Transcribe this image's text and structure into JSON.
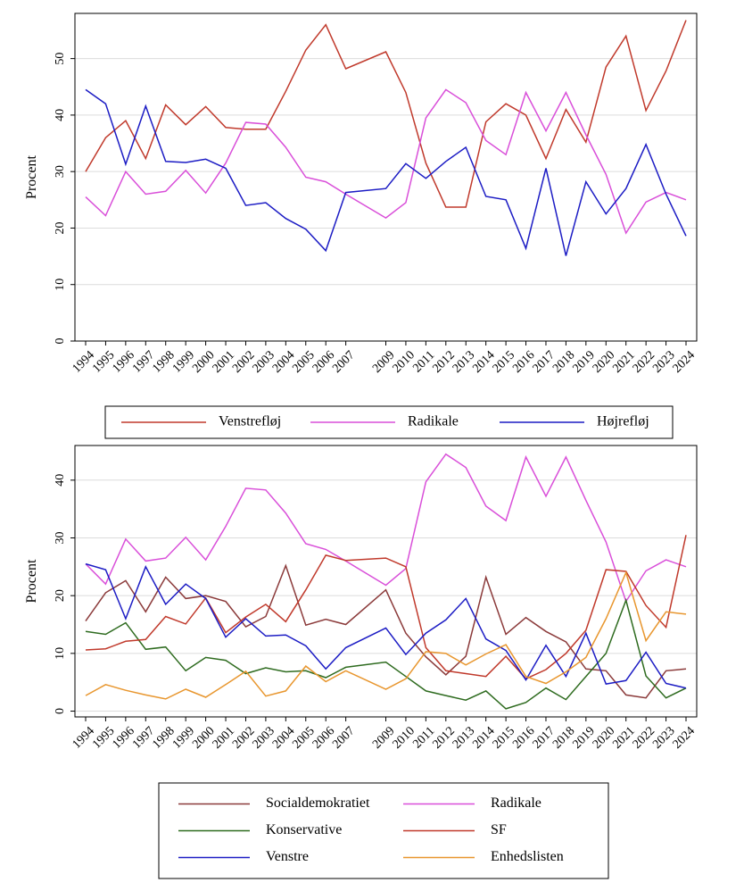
{
  "chart_data": [
    {
      "type": "line",
      "ylabel": "Procent",
      "xlabel": "",
      "ylim": [
        0,
        58
      ],
      "yticks": [
        0,
        10,
        20,
        30,
        40,
        50
      ],
      "x": [
        1994,
        1995,
        1996,
        1997,
        1998,
        1999,
        2000,
        2001,
        2002,
        2003,
        2004,
        2005,
        2006,
        2007,
        2009,
        2010,
        2011,
        2012,
        2013,
        2014,
        2015,
        2016,
        2017,
        2018,
        2019,
        2020,
        2021,
        2022,
        2023,
        2024
      ],
      "x_labels": [
        "1994",
        "1995",
        "1996",
        "1997",
        "1998",
        "1999",
        "2000",
        "2001",
        "2002",
        "2003",
        "2004",
        "2005",
        "2006",
        "2007",
        "2009",
        "2010",
        "2011",
        "2012",
        "2013",
        "2014",
        "2015",
        "2016",
        "2017",
        "2018",
        "2019",
        "2020",
        "2021",
        "2022",
        "2023",
        "2024"
      ],
      "legend": "bottom",
      "series": [
        {
          "name": "Venstrefløj",
          "color": "#c0392b",
          "values": [
            30,
            36,
            39,
            32.3,
            41.8,
            38.3,
            41.5,
            37.8,
            37.5,
            37.5,
            44.2,
            51.5,
            56,
            48.2,
            51.2,
            44,
            31.5,
            23.7,
            23.7,
            38.8,
            42,
            40,
            32.3,
            41,
            35.2,
            48.5,
            54,
            40.8,
            47.8,
            56.8
          ]
        },
        {
          "name": "Radikale",
          "color": "#d94fd9",
          "values": [
            25.5,
            22.2,
            30,
            26,
            26.5,
            30.2,
            26.2,
            31.5,
            38.7,
            38.4,
            34.3,
            29,
            28.2,
            26,
            21.8,
            24.5,
            39.5,
            44.5,
            42.2,
            35.5,
            33,
            44,
            37.2,
            44,
            36.5,
            29.5,
            19.1,
            24.6,
            26.3,
            25
          ]
        },
        {
          "name": "Højrefløj",
          "color": "#1c1cc4",
          "values": [
            44.5,
            42,
            31.3,
            41.6,
            31.8,
            31.6,
            32.2,
            30.6,
            24,
            24.5,
            21.7,
            19.8,
            16,
            26.3,
            27,
            31.4,
            28.8,
            31.8,
            34.3,
            25.6,
            25,
            16.4,
            30.6,
            15.1,
            28.2,
            22.5,
            27,
            34.8,
            26,
            18.6
          ]
        }
      ]
    },
    {
      "type": "line",
      "ylabel": "Procent",
      "xlabel": "",
      "ylim": [
        -1,
        46
      ],
      "yticks": [
        0,
        10,
        20,
        30,
        40
      ],
      "x": [
        1994,
        1995,
        1996,
        1997,
        1998,
        1999,
        2000,
        2001,
        2002,
        2003,
        2004,
        2005,
        2006,
        2007,
        2009,
        2010,
        2011,
        2012,
        2013,
        2014,
        2015,
        2016,
        2017,
        2018,
        2019,
        2020,
        2021,
        2022,
        2023,
        2024
      ],
      "x_labels": [
        "1994",
        "1995",
        "1996",
        "1997",
        "1998",
        "1999",
        "2000",
        "2001",
        "2002",
        "2003",
        "2004",
        "2005",
        "2006",
        "2007",
        "2009",
        "2010",
        "2011",
        "2012",
        "2013",
        "2014",
        "2015",
        "2016",
        "2017",
        "2018",
        "2019",
        "2020",
        "2021",
        "2022",
        "2023",
        "2024"
      ],
      "legend": "bottom",
      "series": [
        {
          "name": "Socialdemokratiet",
          "color": "#8b3a3a",
          "values": [
            15.6,
            20.5,
            22.6,
            17.2,
            23.2,
            19.5,
            20,
            19,
            14.6,
            16.4,
            25.2,
            14.9,
            15.9,
            15,
            21,
            13.5,
            9.4,
            6.3,
            9.5,
            23.2,
            13.3,
            16.2,
            13.8,
            12,
            7.3,
            7,
            2.8,
            2.3,
            7,
            7.3
          ]
        },
        {
          "name": "Radikale",
          "color": "#d94fd9",
          "values": [
            25.5,
            22,
            29.8,
            26,
            26.5,
            30.1,
            26.2,
            32,
            38.6,
            38.3,
            34.3,
            29,
            28,
            26,
            21.8,
            24.7,
            39.7,
            44.5,
            42.2,
            35.5,
            33,
            44,
            37.2,
            44,
            36.5,
            29.3,
            19,
            24.3,
            26.2,
            25
          ]
        },
        {
          "name": "Konservative",
          "color": "#2e6b1f",
          "values": [
            13.8,
            13.3,
            15.3,
            10.7,
            11.1,
            7,
            9.3,
            8.8,
            6.5,
            7.5,
            6.8,
            7,
            5.8,
            7.6,
            8.5,
            6,
            3.5,
            2.7,
            1.9,
            3.5,
            0.4,
            1.5,
            4,
            2,
            6,
            10,
            19.2,
            6.1,
            2.3,
            4
          ]
        },
        {
          "name": "SF",
          "color": "#c0392b",
          "values": [
            10.6,
            10.8,
            12.1,
            12.4,
            16.4,
            15.1,
            19.6,
            13.6,
            16.3,
            18.5,
            15.5,
            21,
            27,
            26.1,
            26.5,
            25,
            11,
            7,
            6.5,
            6,
            9.5,
            5.6,
            7.2,
            10,
            14,
            24.5,
            24.2,
            18.3,
            14.5,
            30.5
          ]
        },
        {
          "name": "Venstre",
          "color": "#1c1cc4",
          "values": [
            25.5,
            24.5,
            16,
            25,
            18.5,
            22,
            19.5,
            12.8,
            16,
            13,
            13.2,
            11.3,
            7.3,
            11,
            14.4,
            9.8,
            13.5,
            15.8,
            19.5,
            12.5,
            10.5,
            5.4,
            11.4,
            6,
            13.5,
            4.7,
            5.3,
            10.2,
            4.8,
            4
          ]
        },
        {
          "name": "Enhedslisten",
          "color": "#e8962e",
          "values": [
            2.7,
            4.6,
            3.6,
            2.8,
            2.1,
            3.8,
            2.4,
            4.6,
            6.9,
            2.6,
            3.5,
            7.8,
            5.1,
            7,
            3.8,
            5.6,
            10.3,
            10,
            8,
            9.9,
            11.5,
            6,
            4.8,
            6.8,
            9.3,
            16,
            24,
            12.2,
            17.2,
            16.8
          ]
        }
      ]
    }
  ]
}
